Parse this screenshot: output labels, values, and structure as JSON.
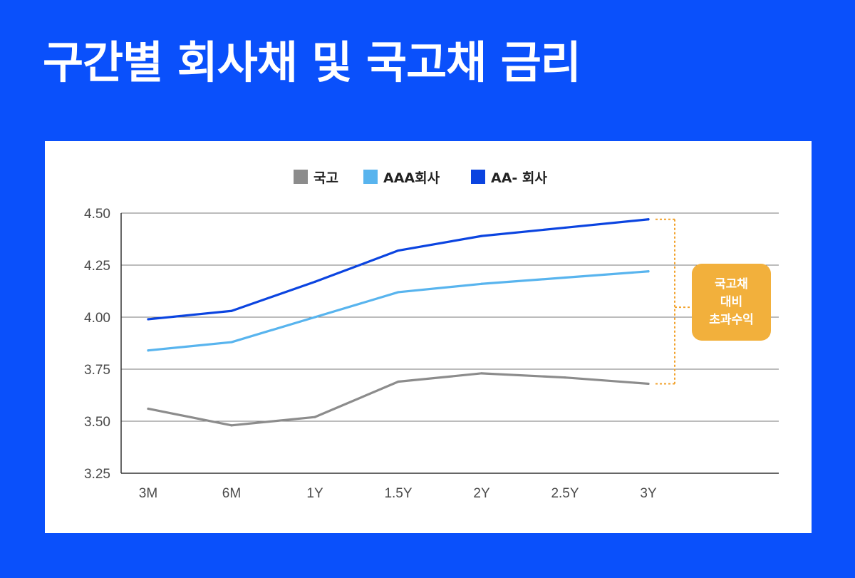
{
  "title": "구간별 회사채 및 국고채 금리",
  "callout": {
    "lines": [
      "국고채",
      "대비",
      "초과수익"
    ],
    "color": "#f2b03c"
  },
  "chart_data": {
    "type": "line",
    "categories": [
      "3M",
      "6M",
      "1Y",
      "1.5Y",
      "2Y",
      "2.5Y",
      "3Y"
    ],
    "ylim": [
      3.25,
      4.5
    ],
    "yticks": [
      "4.50",
      "4.25",
      "4.00",
      "3.75",
      "3.50",
      "3.25"
    ],
    "grid": true,
    "legend_position": "top",
    "series": [
      {
        "name": "국고",
        "color": "#8c8c8c",
        "values": [
          3.56,
          3.48,
          3.52,
          3.69,
          3.73,
          3.71,
          3.68
        ]
      },
      {
        "name": "AAA회사",
        "color": "#58b4ee",
        "values": [
          3.84,
          3.88,
          4.0,
          4.12,
          4.16,
          4.19,
          4.22
        ]
      },
      {
        "name": "AA- 회사",
        "color": "#0b44e0",
        "values": [
          3.99,
          4.03,
          4.17,
          4.32,
          4.39,
          4.43,
          4.47
        ]
      }
    ]
  }
}
